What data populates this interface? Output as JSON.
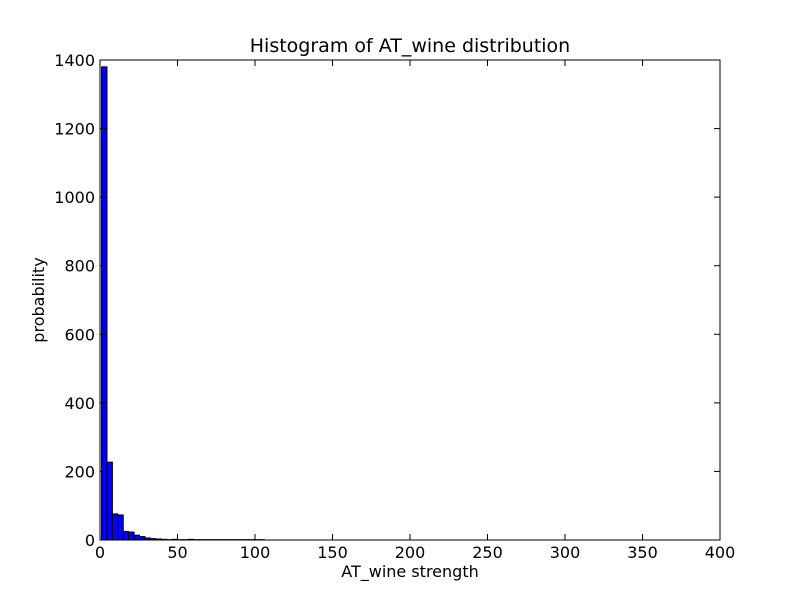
{
  "chart_data": {
    "type": "bar",
    "title": "Histogram of AT_wine  distribution",
    "xlabel": "AT_wine  strength",
    "ylabel": "probability",
    "xlim": [
      0,
      400
    ],
    "ylim": [
      0,
      1400
    ],
    "xticks": [
      0,
      50,
      100,
      150,
      200,
      250,
      300,
      350,
      400
    ],
    "yticks": [
      0,
      200,
      400,
      600,
      800,
      1000,
      1200,
      1400
    ],
    "bin_width": 3.5,
    "bin_start": 1.0,
    "values": [
      1380,
      227,
      76,
      73,
      25,
      23,
      14,
      10,
      6,
      4,
      3,
      2,
      1,
      2,
      1,
      1,
      2,
      1,
      1,
      1,
      1,
      1,
      1,
      1,
      1,
      1,
      1,
      1,
      1,
      1
    ],
    "grid": false,
    "legend": "none",
    "colors": {
      "bar_fill": "#0000ff",
      "bar_edge": "#000000",
      "axes": "#000000",
      "background": "#ffffff"
    }
  }
}
